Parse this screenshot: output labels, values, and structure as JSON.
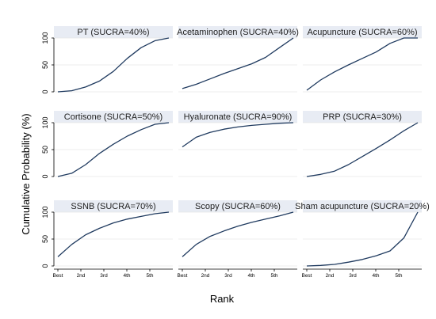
{
  "chart_data": {
    "type": "line",
    "ylabel": "Cumulative Probability (%)",
    "xlabel": "Rank",
    "ylim": [
      0,
      100
    ],
    "yticks": [
      0,
      50,
      100
    ],
    "xtick_labels": [
      "Best",
      "2nd",
      "3rd",
      "4th",
      "5th"
    ],
    "x": [
      1,
      2,
      3,
      4,
      5,
      6,
      7,
      8,
      9
    ],
    "grid": true,
    "colors": {
      "line": "#1f3a5f",
      "strip": "#e8ecf4",
      "grid": "#e6e6e6"
    },
    "panels": [
      {
        "title": "PT (SUCRA=40%)",
        "show_yticks": true,
        "show_xticks": false,
        "values": [
          0,
          2,
          9,
          20,
          38,
          62,
          82,
          95,
          100
        ]
      },
      {
        "title": "Acetaminophen (SUCRA=40%)",
        "show_yticks": false,
        "show_xticks": false,
        "values": [
          6,
          14,
          24,
          34,
          43,
          52,
          64,
          82,
          100
        ]
      },
      {
        "title": "Acupuncture (SUCRA=60%)",
        "show_yticks": false,
        "show_xticks": false,
        "values": [
          3,
          22,
          37,
          50,
          62,
          74,
          90,
          100,
          100
        ]
      },
      {
        "title": "Cortisone (SUCRA=50%)",
        "show_yticks": true,
        "show_xticks": false,
        "values": [
          0,
          6,
          22,
          43,
          60,
          75,
          87,
          97,
          100
        ]
      },
      {
        "title": "Hyaluronate (SUCRA=90%)",
        "show_yticks": false,
        "show_xticks": false,
        "values": [
          55,
          73,
          82,
          88,
          92,
          95,
          97,
          99,
          100
        ]
      },
      {
        "title": "PRP (SUCRA=30%)",
        "show_yticks": false,
        "show_xticks": false,
        "values": [
          0,
          4,
          10,
          22,
          37,
          52,
          68,
          85,
          100
        ]
      },
      {
        "title": "SSNB (SUCRA=70%)",
        "show_yticks": true,
        "show_xticks": true,
        "values": [
          17,
          40,
          58,
          70,
          80,
          87,
          92,
          97,
          100
        ]
      },
      {
        "title": "Scopy (SUCRA=60%)",
        "show_yticks": false,
        "show_xticks": true,
        "values": [
          17,
          40,
          55,
          65,
          74,
          81,
          87,
          93,
          100
        ]
      },
      {
        "title": "Sham acupuncture (SUCRA=20%)",
        "show_yticks": false,
        "show_xticks": true,
        "values": [
          0,
          1,
          3,
          7,
          12,
          19,
          28,
          52,
          100
        ]
      }
    ]
  }
}
